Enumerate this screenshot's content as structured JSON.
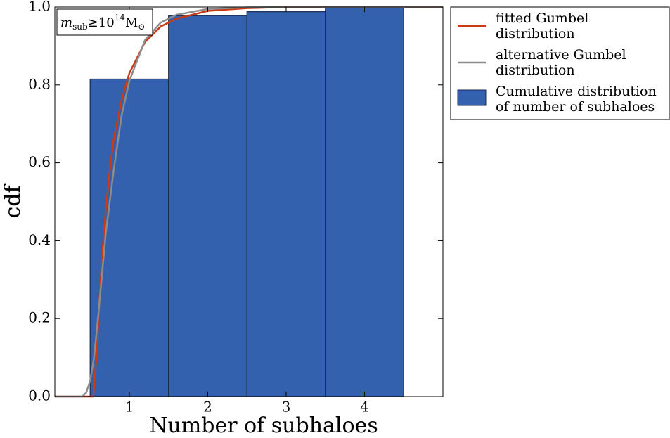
{
  "chart_data": {
    "type": "histogram",
    "xlabel": "Number of subhaloes",
    "ylabel": "cdf",
    "annotation": [
      "m",
      "sub",
      "≥10",
      "14",
      "M",
      "⊙"
    ],
    "bins": [
      0.5,
      1.5,
      2.5,
      3.5,
      4.5
    ],
    "bars": {
      "name": "Cumulative distribution\nof number of subhaloes",
      "color": "#3461ad",
      "values": [
        0.815,
        0.978,
        0.988,
        0.998
      ]
    },
    "lines": [
      {
        "name": "fitted Gumbel\ndistribution",
        "color": "#cc3a14",
        "x": [
          0.05,
          0.5,
          0.54,
          0.58,
          0.62,
          0.66,
          0.7,
          0.75,
          0.8,
          0.9,
          1.0,
          1.2,
          1.4,
          1.6,
          2.0,
          2.5,
          3.0,
          5.0
        ],
        "y": [
          0,
          0,
          0,
          0.1,
          0.25,
          0.38,
          0.48,
          0.58,
          0.66,
          0.76,
          0.83,
          0.91,
          0.95,
          0.97,
          0.99,
          0.997,
          1.0,
          1.0
        ]
      },
      {
        "name": "alternative Gumbel\ndistribution",
        "color": "#8c8c8c",
        "x": [
          0.05,
          0.4,
          0.45,
          0.5,
          0.55,
          0.6,
          0.7,
          0.8,
          0.9,
          1.0,
          1.2,
          1.4,
          1.6,
          2.0,
          2.5,
          3.0,
          5.0
        ],
        "y": [
          0,
          0,
          0.01,
          0.04,
          0.1,
          0.2,
          0.42,
          0.58,
          0.72,
          0.81,
          0.915,
          0.96,
          0.98,
          0.995,
          0.999,
          1.0,
          1.0
        ]
      }
    ],
    "xlim": [
      0.05,
      5.0
    ],
    "ylim": [
      0,
      1
    ],
    "xticks": [
      1,
      2,
      3,
      4
    ],
    "yticks": [
      {
        "value": 0,
        "label": "0.0"
      },
      0.2,
      0.4,
      0.6,
      0.8,
      {
        "value": 1,
        "label": "1.0"
      }
    ],
    "legend": "outside-upper-right"
  }
}
